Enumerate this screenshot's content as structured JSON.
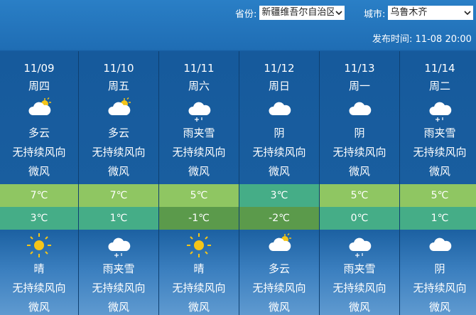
{
  "header": {
    "province_label": "省份:",
    "province_value": "新疆维吾尔自治区",
    "city_label": "城市:",
    "city_value": "乌鲁木齐",
    "publish_label": "发布时间:",
    "publish_time": "11-08 20:00"
  },
  "days": [
    {
      "date": "11/09",
      "weekday": "周四",
      "day_icon": "partly-cloudy-icon",
      "day_weather": "多云",
      "day_wind": "无持续风向",
      "day_level": "微风",
      "high": "7℃",
      "low": "3℃",
      "high_color": "#8fc662",
      "low_color": "#45ad87",
      "night_icon": "sun-icon",
      "night_weather": "晴",
      "night_wind": "无持续风向",
      "night_level": "微风"
    },
    {
      "date": "11/10",
      "weekday": "周五",
      "day_icon": "partly-cloudy-icon",
      "day_weather": "多云",
      "day_wind": "无持续风向",
      "day_level": "微风",
      "high": "7℃",
      "low": "1℃",
      "high_color": "#8fc662",
      "low_color": "#45ad87",
      "night_icon": "sleet-icon",
      "night_weather": "雨夹雪",
      "night_wind": "无持续风向",
      "night_level": "微风"
    },
    {
      "date": "11/11",
      "weekday": "周六",
      "day_icon": "sleet-icon",
      "day_weather": "雨夹雪",
      "day_wind": "无持续风向",
      "day_level": "微风",
      "high": "5℃",
      "low": "-1℃",
      "high_color": "#8fc662",
      "low_color": "#5b9a4b",
      "night_icon": "sun-icon",
      "night_weather": "晴",
      "night_wind": "无持续风向",
      "night_level": "微风"
    },
    {
      "date": "11/12",
      "weekday": "周日",
      "day_icon": "cloud-icon",
      "day_weather": "阴",
      "day_wind": "无持续风向",
      "day_level": "微风",
      "high": "3℃",
      "low": "-2℃",
      "high_color": "#45ad87",
      "low_color": "#5b9a4b",
      "night_icon": "partly-cloudy-icon",
      "night_weather": "多云",
      "night_wind": "无持续风向",
      "night_level": "微风"
    },
    {
      "date": "11/13",
      "weekday": "周一",
      "day_icon": "cloud-icon",
      "day_weather": "阴",
      "day_wind": "无持续风向",
      "day_level": "微风",
      "high": "5℃",
      "low": "0℃",
      "high_color": "#8fc662",
      "low_color": "#45ad87",
      "night_icon": "sleet-icon",
      "night_weather": "雨夹雪",
      "night_wind": "无持续风向",
      "night_level": "微风"
    },
    {
      "date": "11/14",
      "weekday": "周二",
      "day_icon": "sleet-icon",
      "day_weather": "雨夹雪",
      "day_wind": "无持续风向",
      "day_level": "微风",
      "high": "5℃",
      "low": "1℃",
      "high_color": "#8fc662",
      "low_color": "#45ad87",
      "night_icon": "cloud-icon",
      "night_weather": "阴",
      "night_wind": "无持续风向",
      "night_level": "微风"
    }
  ]
}
